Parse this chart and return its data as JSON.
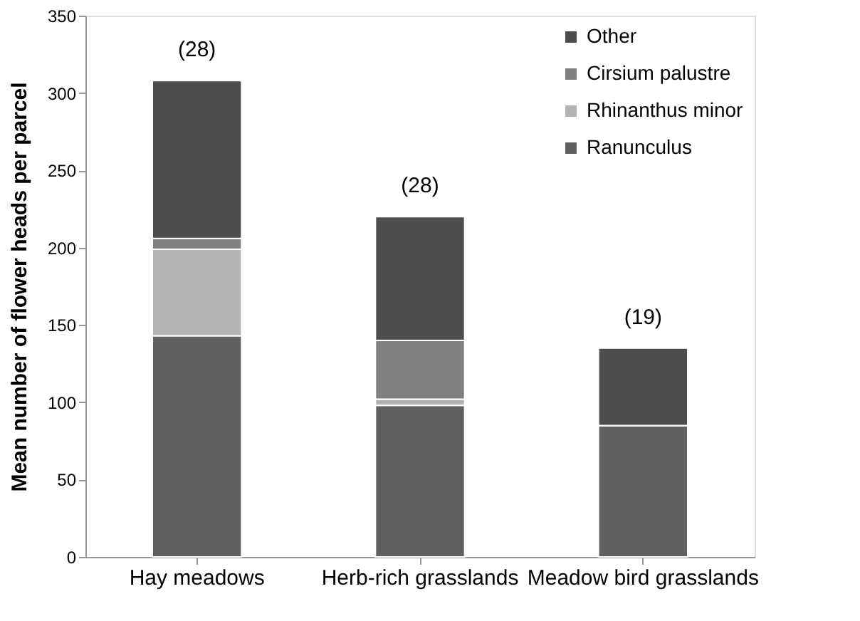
{
  "chart_data": {
    "type": "bar",
    "stacked": true,
    "ylabel": "Mean number of flower heads per parcel",
    "categories": [
      "Hay meadows",
      "Herb-rich grasslands",
      "Meadow bird grasslands"
    ],
    "series": [
      {
        "name": "Ranunculus",
        "color": "#606060",
        "values": [
          143,
          98,
          85
        ]
      },
      {
        "name": "Rhinanthus minor",
        "color": "#b3b3b3",
        "values": [
          56,
          4,
          0
        ]
      },
      {
        "name": "Cirsium palustre",
        "color": "#808080",
        "values": [
          7,
          38,
          0
        ]
      },
      {
        "name": "Other",
        "color": "#4d4d4d",
        "values": [
          102,
          80,
          50
        ]
      }
    ],
    "ylim": [
      0,
      350
    ],
    "yticks": [
      0,
      50,
      100,
      150,
      200,
      250,
      300,
      350
    ],
    "grid": false,
    "legend": "top right",
    "annotations": [
      {
        "text": "(28)",
        "x": "Hay meadows",
        "y": 308
      },
      {
        "text": "(28)",
        "x": "Herb-rich grasslands",
        "y": 220
      },
      {
        "text": "(19)",
        "x": "Meadow bird grasslands",
        "y": 135
      }
    ]
  }
}
